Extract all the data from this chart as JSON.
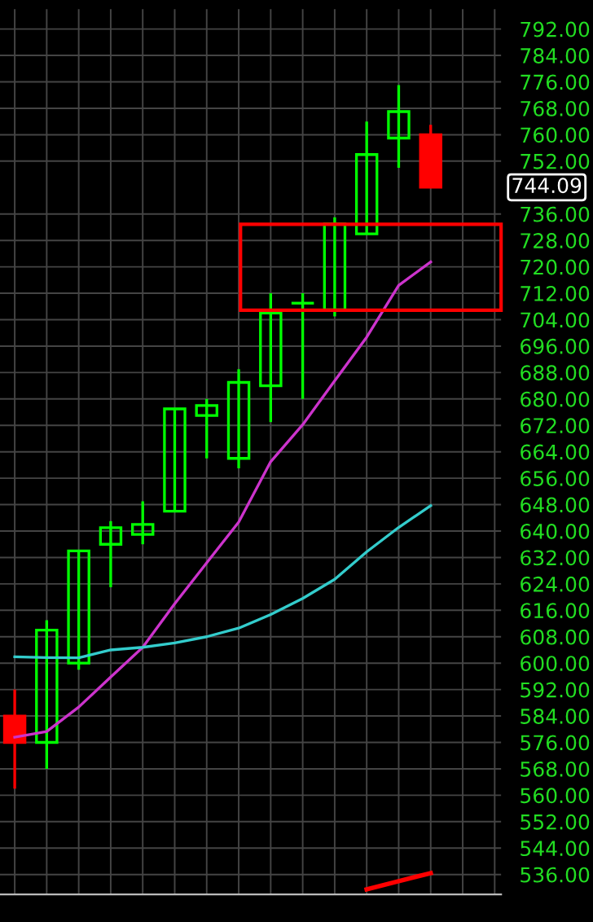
{
  "chart_data": {
    "type": "candlestick",
    "categories": [
      null,
      null,
      null,
      null,
      null,
      null,
      null,
      null,
      null,
      null,
      null,
      null,
      null,
      null,
      null,
      null
    ],
    "ohlc": [
      [
        584,
        592,
        562,
        576
      ],
      [
        576,
        613,
        568,
        610
      ],
      [
        600,
        634,
        598,
        634
      ],
      [
        636,
        643,
        623,
        641
      ],
      [
        639,
        649,
        636,
        642
      ],
      [
        646,
        677,
        646,
        677
      ],
      [
        675,
        680,
        662,
        678
      ],
      [
        662,
        689,
        659,
        685
      ],
      [
        684,
        712,
        673,
        706
      ],
      [
        709,
        712,
        680,
        709
      ],
      [
        707,
        735,
        705,
        733
      ],
      [
        730,
        764,
        730,
        754
      ],
      [
        759,
        775,
        750,
        767
      ],
      [
        760,
        763,
        744.09,
        744.09
      ],
      null,
      null
    ],
    "colors": [
      "#ff0000",
      "#00ff00",
      "#00ff00",
      "#00ff00",
      "#00ff00",
      "#00ff00",
      "#00ff00",
      "#00ff00",
      "#00ff00",
      "#00ff00",
      "#00ff00",
      "#00ff00",
      "#00ff00",
      "#ff0000",
      null,
      null
    ],
    "series": [
      {
        "type": "line",
        "color": "#cc33cc",
        "values": [
          577.6,
          579.3,
          586.7,
          595.8,
          604.8,
          618,
          630.4,
          642.7,
          661,
          672.2,
          685.5,
          698.7,
          714.4,
          721.5,
          null,
          null
        ]
      },
      {
        "type": "line",
        "color": "#33cccc",
        "values": [
          601.9,
          601.7,
          601.6,
          604,
          604.8,
          606.1,
          608,
          610.6,
          614.7,
          619.6,
          625.4,
          633.7,
          641.1,
          647.7,
          null,
          null
        ]
      },
      {
        "type": "line",
        "color": "#ff0000",
        "values": [
          null,
          null,
          null,
          null,
          null,
          null,
          null,
          null,
          null,
          null,
          null,
          531.5,
          534,
          536.4,
          null,
          null
        ]
      }
    ],
    "ylim": [
      530,
      798
    ],
    "yticks": [
      {
        "value": 536,
        "label": "536.00"
      },
      {
        "value": 544,
        "label": "544.00"
      },
      {
        "value": 552,
        "label": "552.00"
      },
      {
        "value": 560,
        "label": "560.00"
      },
      {
        "value": 568,
        "label": "568.00"
      },
      {
        "value": 576,
        "label": "576.00"
      },
      {
        "value": 584,
        "label": "584.00"
      },
      {
        "value": 592,
        "label": "592.00"
      },
      {
        "value": 600,
        "label": "600.00"
      },
      {
        "value": 608,
        "label": "608.00"
      },
      {
        "value": 616,
        "label": "616.00"
      },
      {
        "value": 624,
        "label": "624.00"
      },
      {
        "value": 632,
        "label": "632.00"
      },
      {
        "value": 640,
        "label": "640.00"
      },
      {
        "value": 648,
        "label": "648.00"
      },
      {
        "value": 656,
        "label": "656.00"
      },
      {
        "value": 664,
        "label": "664.00"
      },
      {
        "value": 672,
        "label": "672.00"
      },
      {
        "value": 680,
        "label": "680.00"
      },
      {
        "value": 688,
        "label": "688.00"
      },
      {
        "value": 696,
        "label": "696.00"
      },
      {
        "value": 704,
        "label": "704.00"
      },
      {
        "value": 712,
        "label": "712.00"
      },
      {
        "value": 720,
        "label": "720.00"
      },
      {
        "value": 728,
        "label": "728.00"
      },
      {
        "value": 736,
        "label": "736.00"
      },
      {
        "value": 752,
        "label": "752.00"
      },
      {
        "value": 760,
        "label": "760.00"
      },
      {
        "value": 768,
        "label": "768.00"
      },
      {
        "value": 776,
        "label": "776.00"
      },
      {
        "value": 784,
        "label": "784.00"
      },
      {
        "value": 792,
        "label": "792.00"
      }
    ],
    "grid": true,
    "tick_labels": "y",
    "legend": false,
    "annotations": [
      "744.09"
    ]
  }
}
